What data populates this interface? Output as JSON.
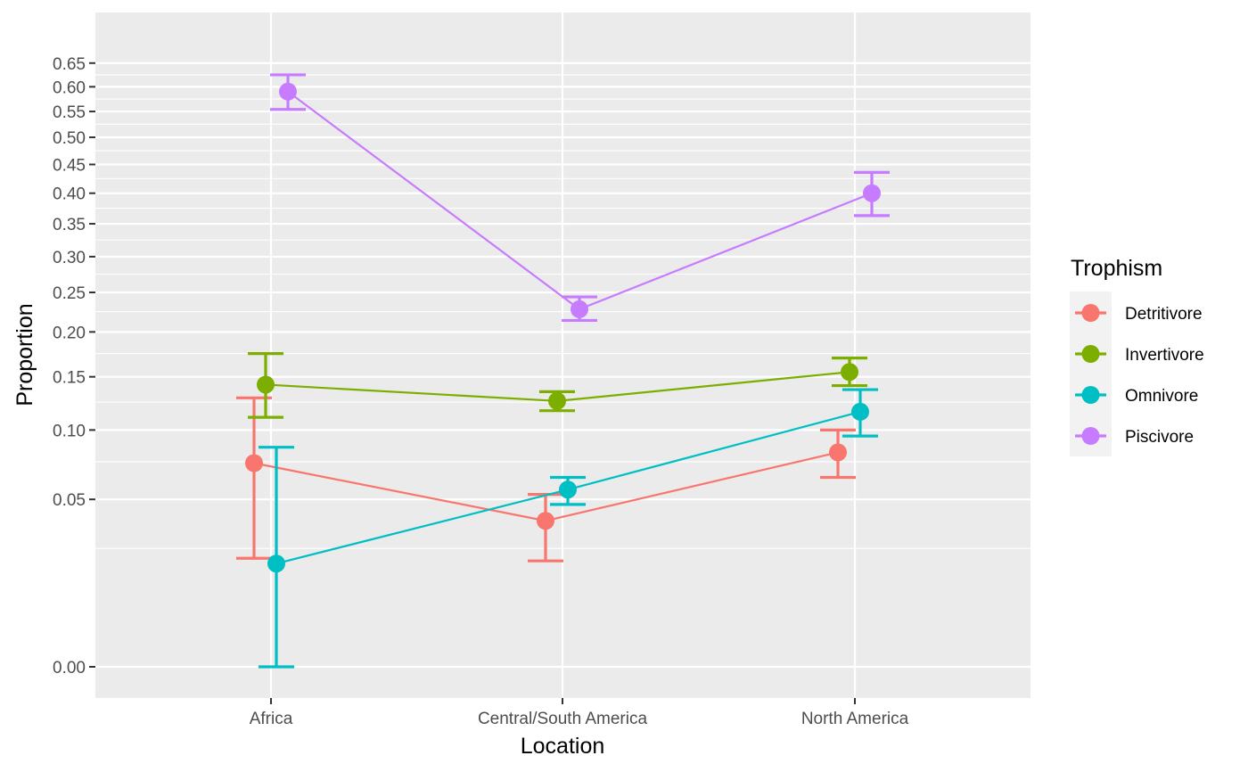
{
  "chart_data": {
    "type": "line",
    "xlabel": "Location",
    "ylabel": "Proportion",
    "categories": [
      "Africa",
      "Central/South America",
      "North America"
    ],
    "y_scale": "sqrt",
    "ylim": [
      0,
      0.66
    ],
    "y_ticks": [
      "0.00",
      "0.05",
      "0.10",
      "0.15",
      "0.20",
      "0.25",
      "0.30",
      "0.35",
      "0.40",
      "0.45",
      "0.50",
      "0.55",
      "0.60",
      "0.65"
    ],
    "grid": true,
    "legend": {
      "title": "Trophism",
      "placement": "right"
    },
    "series": [
      {
        "name": "Detritivore",
        "color": "#F8766D",
        "values": [
          0.074,
          0.038,
          0.082
        ],
        "error_low": [
          0.021,
          0.02,
          0.064
        ],
        "error_high": [
          0.129,
          0.053,
          0.1
        ]
      },
      {
        "name": "Invertivore",
        "color": "#7CAE00",
        "values": [
          0.142,
          0.126,
          0.155
        ],
        "error_low": [
          0.111,
          0.117,
          0.141
        ],
        "error_high": [
          0.175,
          0.135,
          0.17
        ]
      },
      {
        "name": "Omnivore",
        "color": "#00BFC4",
        "values": [
          0.019,
          0.056,
          0.116
        ],
        "error_low": [
          0.0,
          0.047,
          0.095
        ],
        "error_high": [
          0.086,
          0.064,
          0.137
        ]
      },
      {
        "name": "Piscivore",
        "color": "#C77CFF",
        "values": [
          0.59,
          0.228,
          0.4
        ],
        "error_low": [
          0.554,
          0.214,
          0.363
        ],
        "error_high": [
          0.625,
          0.244,
          0.436
        ]
      }
    ]
  }
}
